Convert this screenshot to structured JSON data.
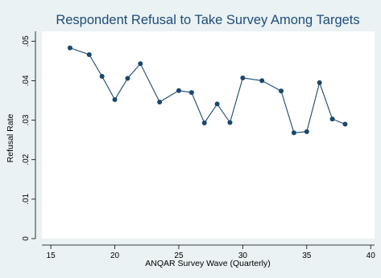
{
  "chart_data": {
    "type": "line",
    "title": "Respondent Refusal to Take Survey Among Targets",
    "xlabel": "ANQAR Survey Wave (Quarterly)",
    "ylabel": "Refusal Rate",
    "xlim": [
      14.3,
      40.3
    ],
    "ylim": [
      0,
      0.0525
    ],
    "x_ticks": [
      15,
      20,
      25,
      30,
      35,
      40
    ],
    "x_tick_labels": [
      "15",
      "20",
      "25",
      "30",
      "35",
      "40"
    ],
    "y_ticks": [
      0,
      0.01,
      0.02,
      0.03,
      0.04,
      0.05
    ],
    "y_tick_labels": [
      "0",
      ".01",
      ".02",
      ".03",
      ".04",
      ".05"
    ],
    "grid": false,
    "colors": {
      "background": "#eaf2f3",
      "plot_area": "#ffffff",
      "line": "#1a476f",
      "title": "#1e4b7a"
    },
    "series": [
      {
        "x": [
          16.5,
          18,
          19,
          20,
          21,
          22,
          23.5,
          25,
          26,
          27,
          28,
          29,
          30,
          31.5,
          33,
          34,
          35,
          36,
          37,
          38
        ],
        "values": [
          0.0483,
          0.0466,
          0.0411,
          0.0352,
          0.0406,
          0.0443,
          0.0346,
          0.0375,
          0.037,
          0.0293,
          0.0341,
          0.0294,
          0.0407,
          0.04,
          0.0374,
          0.0268,
          0.0271,
          0.0395,
          0.0303,
          0.029
        ]
      }
    ]
  }
}
